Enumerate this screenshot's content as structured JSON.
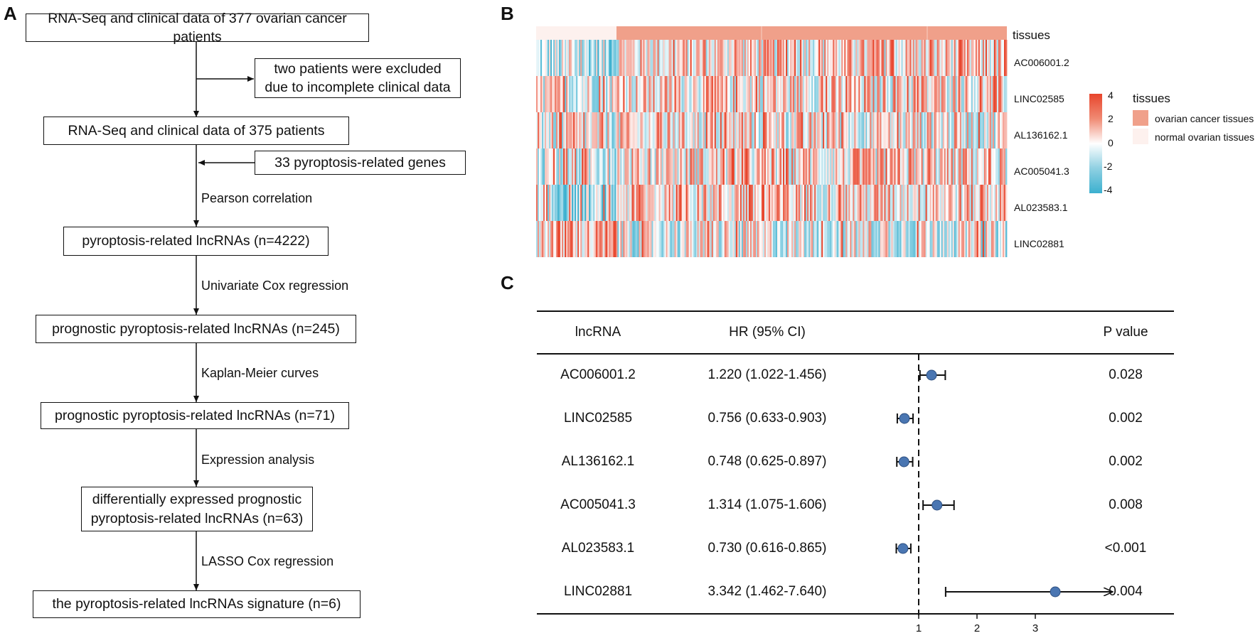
{
  "panels": {
    "a": "A",
    "b": "B",
    "c": "C"
  },
  "flowchart": {
    "boxes": [
      "RNA-Seq and clinical data of 377 ovarian cancer patients",
      "two patients were excluded due to incomplete clinical data",
      "RNA-Seq and clinical data of 375 patients",
      "33 pyroptosis-related genes",
      "pyroptosis-related lncRNAs (n=4222)",
      "prognostic pyroptosis-related lncRNAs (n=245)",
      "prognostic pyroptosis-related lncRNAs (n=71)",
      "differentially expressed prognostic pyroptosis-related lncRNAs (n=63)",
      "the pyroptosis-related lncRNAs signature (n=6)"
    ],
    "steps": [
      "Pearson correlation",
      "Univariate Cox regression",
      "Kaplan-Meier curves",
      "Expression analysis",
      "LASSO Cox regression"
    ]
  },
  "heatmap": {
    "annotation_label": "tissues",
    "genes": [
      "AC006001.2",
      "LINC02585",
      "AL136162.1",
      "AC005041.3",
      "AL023583.1",
      "LINC02881"
    ],
    "colorbar": {
      "ticks": [
        "4",
        "2",
        "0",
        "-2",
        "-4"
      ],
      "high": "#e8452c",
      "mid": "#ffffff",
      "low": "#3bb0cf"
    },
    "legend": {
      "title": "tissues",
      "items": [
        {
          "label": "ovarian cancer tissues",
          "color": "#f0a08a"
        },
        {
          "label": "normal ovarian tissues",
          "color": "#fdf1ee"
        }
      ]
    }
  },
  "chart_data": {
    "type": "forest",
    "columns": {
      "lncrna": "lncRNA",
      "hr": "HR (95% CI)",
      "p": "P value"
    },
    "rows": [
      {
        "name": "AC006001.2",
        "hr_text": "1.220 (1.022-1.456)",
        "hr": 1.22,
        "lo": 1.022,
        "hi": 1.456,
        "p": "0.028",
        "arrow": false
      },
      {
        "name": "LINC02585",
        "hr_text": "0.756 (0.633-0.903)",
        "hr": 0.756,
        "lo": 0.633,
        "hi": 0.903,
        "p": "0.002",
        "arrow": false
      },
      {
        "name": "AL136162.1",
        "hr_text": "0.748 (0.625-0.897)",
        "hr": 0.748,
        "lo": 0.625,
        "hi": 0.897,
        "p": "0.002",
        "arrow": false
      },
      {
        "name": "AC005041.3",
        "hr_text": "1.314 (1.075-1.606)",
        "hr": 1.314,
        "lo": 1.075,
        "hi": 1.606,
        "p": "0.008",
        "arrow": false
      },
      {
        "name": "AL023583.1",
        "hr_text": "0.730 (0.616-0.865)",
        "hr": 0.73,
        "lo": 0.616,
        "hi": 0.865,
        "p": "<0.001",
        "arrow": false
      },
      {
        "name": "LINC02881",
        "hr_text": "3.342 (1.462-7.640)",
        "hr": 3.342,
        "lo": 1.462,
        "hi": 7.64,
        "p": "0.004",
        "arrow": true
      }
    ],
    "xaxis": {
      "ticks": [
        1,
        2,
        3
      ],
      "reference": 1,
      "min": 0.55,
      "max": 3.45
    },
    "point_color": "#4a76b2"
  }
}
